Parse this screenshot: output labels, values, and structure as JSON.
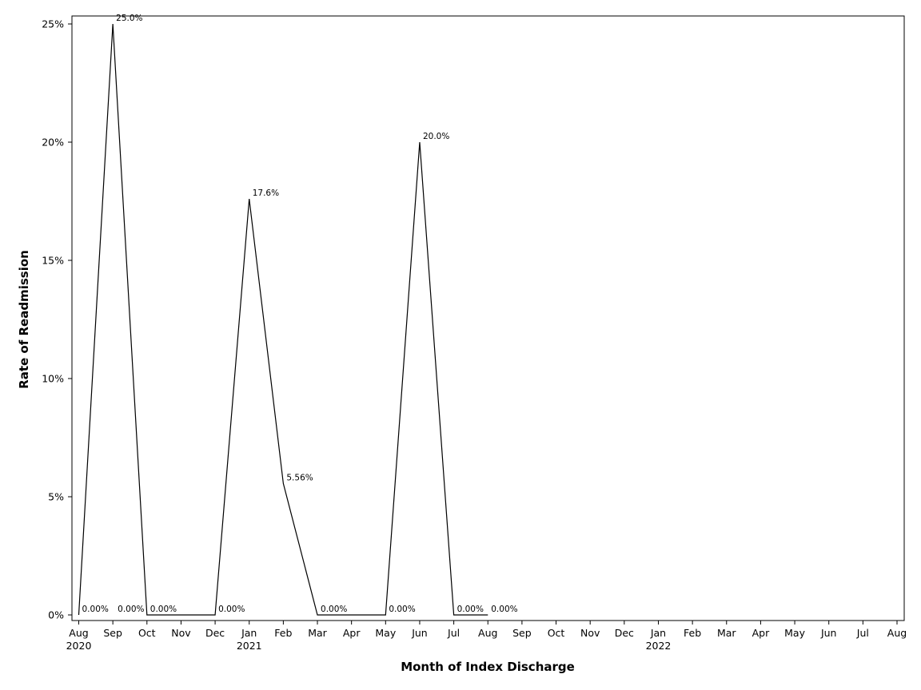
{
  "chart_data": {
    "type": "line",
    "title": "",
    "xlabel": "Month of Index Discharge",
    "ylabel": "Rate of Readmission",
    "ylim": [
      0,
      25
    ],
    "y_ticks": [
      0,
      5,
      10,
      15,
      20,
      25
    ],
    "y_tick_labels": [
      "0%",
      "5%",
      "10%",
      "15%",
      "20%",
      "25%"
    ],
    "x_ticks": [
      "2020-08",
      "2020-09",
      "2020-10",
      "2020-11",
      "2020-12",
      "2021-01",
      "2021-02",
      "2021-03",
      "2021-04",
      "2021-05",
      "2021-06",
      "2021-07",
      "2021-08",
      "2021-09",
      "2021-10",
      "2021-11",
      "2021-12",
      "2022-01",
      "2022-02",
      "2022-03",
      "2022-04",
      "2022-05",
      "2022-06",
      "2022-07",
      "2022-08"
    ],
    "x_tick_labels": [
      "Aug",
      "Sep",
      "Oct",
      "Nov",
      "Dec",
      "Jan",
      "Feb",
      "Mar",
      "Apr",
      "May",
      "Jun",
      "Jul",
      "Aug",
      "Sep",
      "Oct",
      "Nov",
      "Dec",
      "Jan",
      "Feb",
      "Mar",
      "Apr",
      "May",
      "Jun",
      "Jul",
      "Aug"
    ],
    "year_labels": [
      {
        "x": "2020-08",
        "text": "2020"
      },
      {
        "x": "2021-01",
        "text": "2021"
      },
      {
        "x": "2022-01",
        "text": "2022"
      }
    ],
    "grid": false,
    "legend": "none",
    "line_color": "#000000",
    "series": [
      {
        "x": [
          "2020-08",
          "2020-09",
          "2020-10",
          "2020-12",
          "2021-01",
          "2021-02",
          "2021-03",
          "2021-05",
          "2021-06",
          "2021-07",
          "2021-08"
        ],
        "values": [
          0,
          25.0,
          0,
          0,
          17.6,
          5.56,
          0,
          0,
          20.0,
          0,
          0
        ],
        "labels": [
          "0.00%",
          "25.0%",
          "0.00%",
          "0.00%",
          "17.6%",
          "5.56%",
          "0.00%",
          "0.00%",
          "20.0%",
          "0.00%",
          "0.00%"
        ]
      }
    ],
    "extra_labels": [
      {
        "x": "2020-09",
        "y": 0,
        "text": "0.00%"
      }
    ]
  }
}
